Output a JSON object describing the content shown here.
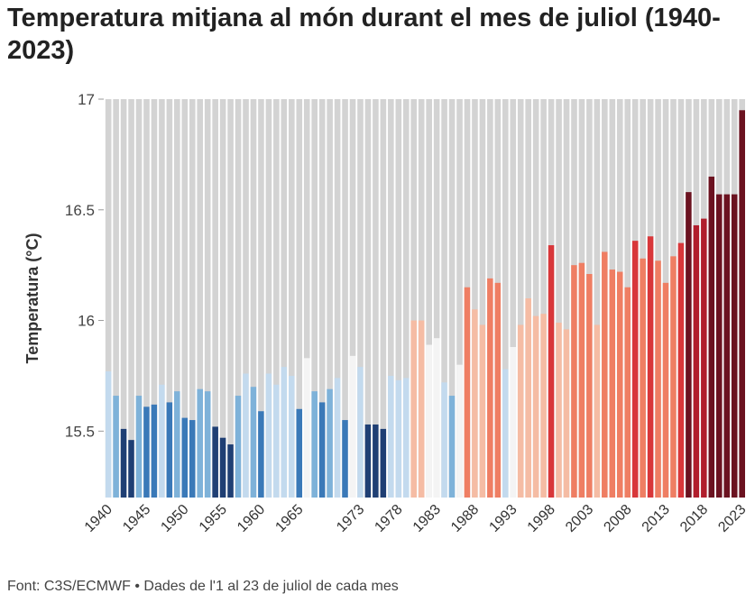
{
  "chart_data": {
    "type": "bar",
    "title": "Temperatura mitjana al món durant el mes de juliol (1940-2023)",
    "ylabel": "Temperatura (°C)",
    "xlabel": "",
    "ylim": [
      15.2,
      17
    ],
    "yticks": [
      "15.5",
      "16",
      "16.5",
      "17"
    ],
    "xtick_labels": [
      "1940",
      "1945",
      "1950",
      "1955",
      "1960",
      "1965",
      "1973",
      "1978",
      "1983",
      "1988",
      "1993",
      "1998",
      "2003",
      "2008",
      "2013",
      "2018",
      "2023"
    ],
    "years": [
      1940,
      1941,
      1942,
      1943,
      1944,
      1945,
      1946,
      1947,
      1948,
      1949,
      1950,
      1951,
      1952,
      1953,
      1954,
      1955,
      1956,
      1957,
      1958,
      1959,
      1960,
      1961,
      1962,
      1963,
      1964,
      1965,
      1966,
      1967,
      1968,
      1969,
      1970,
      1971,
      1972,
      1973,
      1974,
      1975,
      1976,
      1977,
      1978,
      1979,
      1980,
      1981,
      1982,
      1983,
      1984,
      1985,
      1986,
      1987,
      1988,
      1989,
      1990,
      1991,
      1992,
      1993,
      1994,
      1995,
      1996,
      1997,
      1998,
      1999,
      2000,
      2001,
      2002,
      2003,
      2004,
      2005,
      2006,
      2007,
      2008,
      2009,
      2010,
      2011,
      2012,
      2013,
      2014,
      2015,
      2016,
      2017,
      2018,
      2019,
      2020,
      2021,
      2022,
      2023
    ],
    "values": [
      15.77,
      15.66,
      15.51,
      15.46,
      15.66,
      15.61,
      15.62,
      15.71,
      15.63,
      15.68,
      15.56,
      15.55,
      15.69,
      15.68,
      15.52,
      15.47,
      15.44,
      15.66,
      15.76,
      15.7,
      15.59,
      15.76,
      15.71,
      15.79,
      15.75,
      15.6,
      15.83,
      15.68,
      15.63,
      15.69,
      15.74,
      15.55,
      15.84,
      15.79,
      15.53,
      15.53,
      15.51,
      15.75,
      15.73,
      15.74,
      16.0,
      16.0,
      15.89,
      15.92,
      15.72,
      15.66,
      15.8,
      16.15,
      16.05,
      15.98,
      16.19,
      16.17,
      15.78,
      15.88,
      15.98,
      16.1,
      16.02,
      16.03,
      16.34,
      15.99,
      15.96,
      16.25,
      16.26,
      16.21,
      15.98,
      16.31,
      16.23,
      16.22,
      16.15,
      16.36,
      16.28,
      16.38,
      16.27,
      16.17,
      16.29,
      16.35,
      16.58,
      16.43,
      16.46,
      16.65,
      16.57,
      16.57,
      16.57,
      16.95
    ],
    "colors": {
      "c1": "#1f3f74",
      "c2": "#3a79b8",
      "c3": "#7eb2d9",
      "c4": "#c3daee",
      "c5": "#f4f4f4",
      "c6": "#f5bca4",
      "c7": "#ef7e63",
      "c8": "#d8373a",
      "c9": "#b11e2c",
      "c10": "#6b1220",
      "background": "#d3d3d3",
      "gap": "#ffffff"
    }
  },
  "footer": {
    "source": "Font: C3S/ECMWF • Dades de l'1 al 23 de juliol de cada mes"
  }
}
